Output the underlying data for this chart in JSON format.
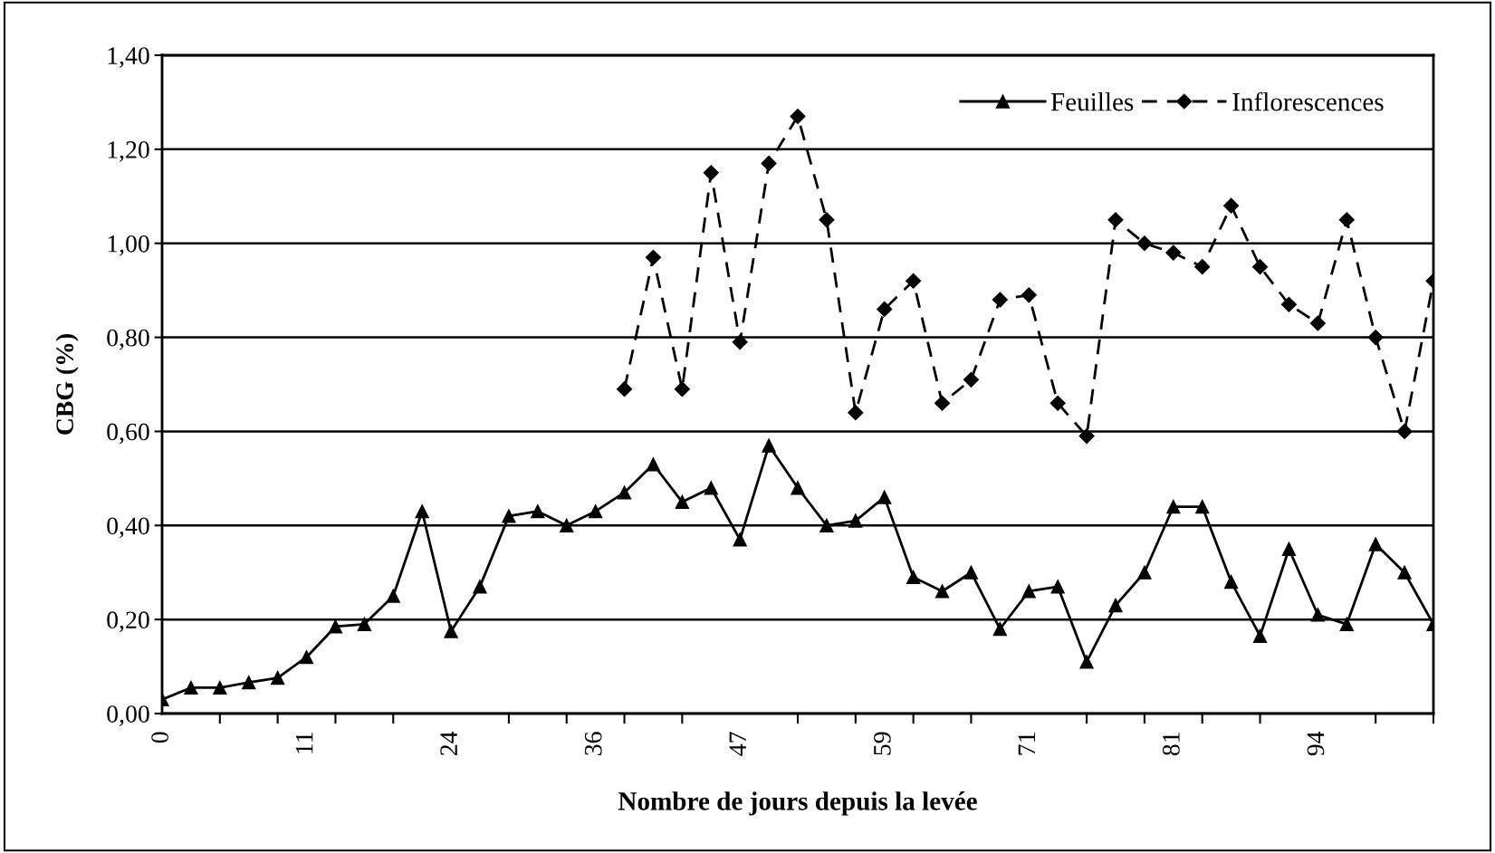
{
  "chart_data": {
    "type": "line",
    "xlabel": "Nombre de jours depuis la levée",
    "ylabel": "CBG (%)",
    "categories": [
      "0",
      null,
      null,
      null,
      null,
      "11",
      null,
      null,
      null,
      null,
      "24",
      null,
      null,
      null,
      null,
      "36",
      null,
      null,
      null,
      null,
      "47",
      null,
      null,
      null,
      null,
      "59",
      null,
      null,
      null,
      null,
      "71",
      null,
      null,
      null,
      null,
      "81",
      null,
      null,
      null,
      null,
      "94",
      null,
      null,
      null,
      null
    ],
    "series": [
      {
        "name": "Feuilles",
        "color": "#000000",
        "marker": "triangle",
        "line_style": "solid",
        "values": [
          0.03,
          0.055,
          0.055,
          0.066,
          0.076,
          0.12,
          0.185,
          0.19,
          0.25,
          0.43,
          0.175,
          0.27,
          0.42,
          0.43,
          0.4,
          0.43,
          0.47,
          0.53,
          0.45,
          0.48,
          0.37,
          0.57,
          0.48,
          0.4,
          0.41,
          0.46,
          0.29,
          0.26,
          0.3,
          0.18,
          0.26,
          0.27,
          0.11,
          0.23,
          0.3,
          0.44,
          0.44,
          0.28,
          0.165,
          0.35,
          0.21,
          0.19,
          0.36,
          0.3,
          0.19
        ]
      },
      {
        "name": "Inflorescences",
        "color": "#000000",
        "marker": "diamond",
        "line_style": "dashed",
        "values": [
          null,
          null,
          null,
          null,
          null,
          null,
          null,
          null,
          null,
          null,
          null,
          null,
          null,
          null,
          null,
          null,
          0.69,
          0.97,
          0.69,
          1.15,
          0.79,
          1.17,
          1.27,
          1.05,
          0.64,
          0.86,
          0.92,
          0.66,
          0.71,
          0.88,
          0.89,
          0.66,
          0.59,
          1.05,
          1.0,
          0.98,
          0.95,
          1.08,
          0.95,
          0.87,
          0.83,
          1.05,
          0.8,
          0.6,
          0.92
        ]
      }
    ],
    "ylim": [
      0,
      1.4
    ],
    "yticks": [
      {
        "value": 0,
        "label": "0,00"
      },
      {
        "value": 0.2,
        "label": "0,20"
      },
      {
        "value": 0.4,
        "label": "0,40"
      },
      {
        "value": 0.6,
        "label": "0,60"
      },
      {
        "value": 0.8,
        "label": "0,80"
      },
      {
        "value": 1.0,
        "label": "1,00"
      },
      {
        "value": 1.2,
        "label": "1,20"
      },
      {
        "value": 1.4,
        "label": "1,40"
      }
    ],
    "grid": "y",
    "legend": "top right"
  }
}
